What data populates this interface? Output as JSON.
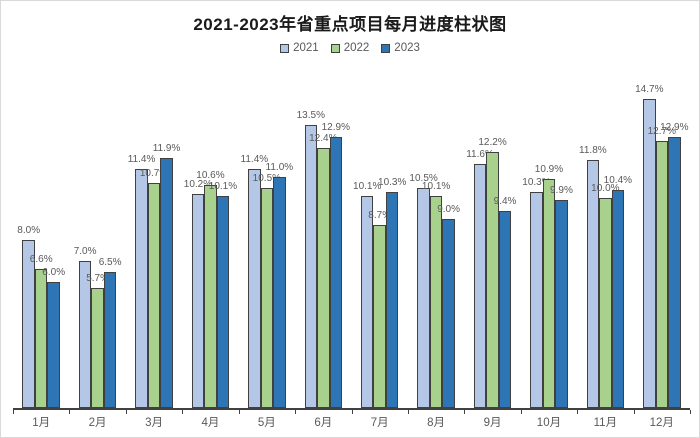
{
  "title": "2021-2023年省重点项目每月进度柱状图",
  "colors": {
    "series_2021": "#B4C7E7",
    "series_2022": "#A9D18E",
    "series_2023": "#2E75B6",
    "bar_border": "#404040",
    "axis": "#404040",
    "data_label": "#595959",
    "axis_label": "#595959",
    "legend_text": "#595959",
    "title_text": "#1A1A1A",
    "frame_border": "#D9D9D9",
    "background": "#FFFFFF"
  },
  "chart_data": {
    "type": "bar",
    "title": "2021-2023年省重点项目每月进度柱状图",
    "xlabel": "",
    "ylabel": "",
    "value_suffix": "%",
    "ylim": [
      0,
      15.5
    ],
    "grid": false,
    "y_axis_visible": false,
    "legend_position": "top",
    "data_labels": true,
    "categories": [
      "1月",
      "2月",
      "3月",
      "4月",
      "5月",
      "6月",
      "7月",
      "8月",
      "9月",
      "10月",
      "11月",
      "12月"
    ],
    "series": [
      {
        "name": "2021",
        "color": "#B4C7E7",
        "values": [
          8.0,
          7.0,
          11.4,
          10.2,
          11.4,
          13.5,
          10.1,
          10.5,
          11.6,
          10.3,
          11.8,
          14.7
        ]
      },
      {
        "name": "2022",
        "color": "#A9D18E",
        "values": [
          6.6,
          5.7,
          10.7,
          10.6,
          10.5,
          12.4,
          8.7,
          10.1,
          12.2,
          10.9,
          10.0,
          12.7
        ]
      },
      {
        "name": "2023",
        "color": "#2E75B6",
        "values": [
          6.0,
          6.5,
          11.9,
          10.1,
          11.0,
          12.9,
          10.3,
          9.0,
          9.4,
          9.9,
          10.4,
          12.9
        ]
      }
    ]
  }
}
